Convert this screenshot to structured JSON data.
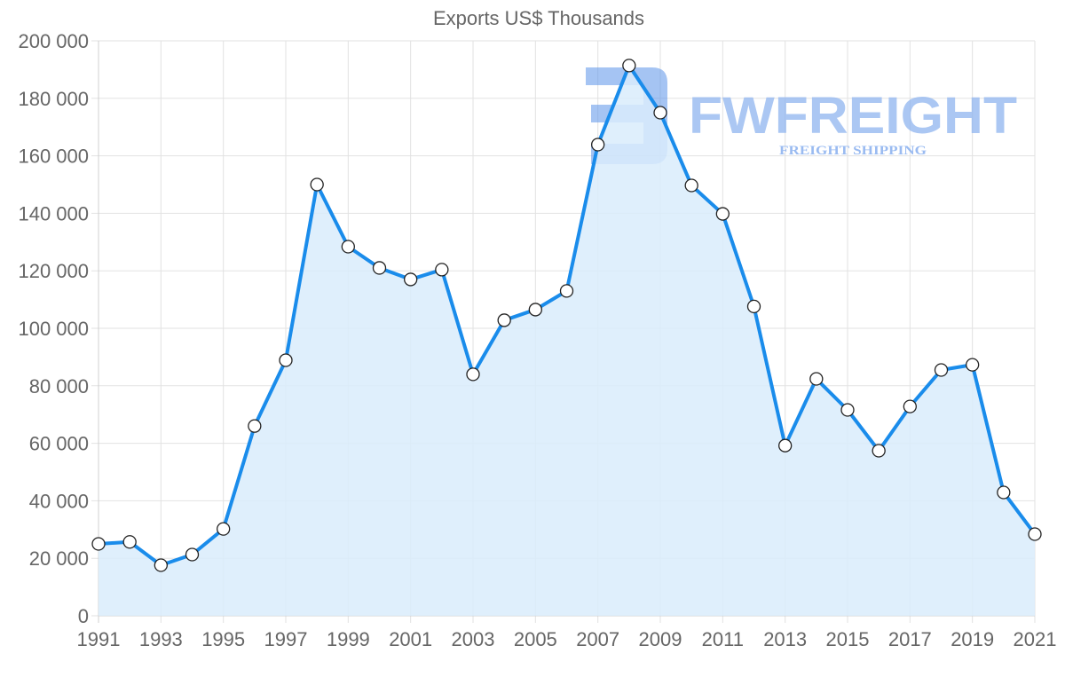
{
  "chart_data": {
    "type": "line",
    "title": "Exports US$ Thousands",
    "xlabel": "",
    "ylabel": "",
    "ylim": [
      0,
      200000
    ],
    "grid": true,
    "legend": "none",
    "fill_area": true,
    "x": [
      1991,
      1992,
      1993,
      1994,
      1995,
      1996,
      1997,
      1998,
      1999,
      2000,
      2001,
      2002,
      2003,
      2004,
      2005,
      2006,
      2007,
      2008,
      2009,
      2010,
      2011,
      2012,
      2013,
      2014,
      2015,
      2016,
      2017,
      2018,
      2019,
      2020,
      2021
    ],
    "series": [
      {
        "name": "Exports US$ Thousands",
        "values": [
          25000,
          25700,
          17600,
          21300,
          30200,
          66000,
          88900,
          150000,
          128400,
          121000,
          117000,
          120400,
          84000,
          102800,
          106500,
          113000,
          163900,
          191400,
          175000,
          149700,
          139800,
          107600,
          59200,
          82400,
          71600,
          57400,
          72800,
          85500,
          87300,
          42900,
          28400
        ]
      }
    ],
    "yticks": [
      "200 000",
      "180 000",
      "160 000",
      "140 000",
      "120 000",
      "100 000",
      "80 000",
      "60 000",
      "40 000",
      "20 000",
      "0"
    ],
    "xticks": [
      "1991",
      "1993",
      "1995",
      "1997",
      "1999",
      "2001",
      "2003",
      "2005",
      "2007",
      "2009",
      "2011",
      "2013",
      "2015",
      "2017",
      "2019",
      "2021"
    ],
    "colors": {
      "line": "#1a8ceb",
      "fill": "#d9ecfc",
      "point_fill": "#ffffff",
      "point_stroke": "#222222",
      "grid": "#e2e2e2",
      "text": "#666666",
      "watermark": "#8fb4ef"
    }
  },
  "watermark": {
    "brand": "FWFREIGHT",
    "tagline": "FREIGHT SHIPPING"
  }
}
